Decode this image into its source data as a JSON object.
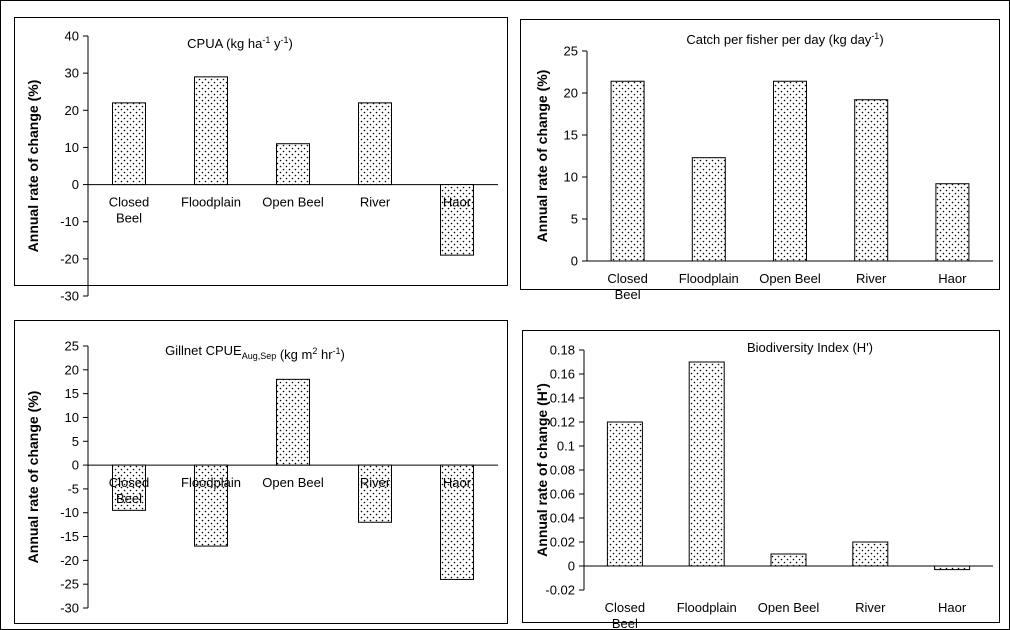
{
  "chart_data": [
    {
      "type": "bar",
      "title": "CPUA (kg ha",
      "title_sup1": "-1",
      "title_mid": " y",
      "title_sup2": "-1",
      "title_end": ")",
      "ylabel": "Annual rate of change (%)",
      "categories": [
        "Closed Beel",
        "Floodplain",
        "Open Beel",
        "River",
        "Haor"
      ],
      "category_lines": [
        [
          "Closed",
          "Beel"
        ],
        [
          "Floodplain"
        ],
        [
          "Open Beel"
        ],
        [
          "River"
        ],
        [
          "Haor"
        ]
      ],
      "values": [
        22,
        29,
        11,
        22,
        -19
      ],
      "ylim": [
        -30,
        40
      ],
      "yticks": [
        "40",
        "30",
        "20",
        "10",
        "0",
        "-10",
        "-20",
        "-30"
      ],
      "category_labels_position": "at zero line",
      "grid": false
    },
    {
      "type": "bar",
      "title": "Catch per fisher per day (kg day",
      "title_sup1": "-1",
      "title_end": ")",
      "ylabel": "Annual rate of change (%)",
      "categories": [
        "Closed Beel",
        "Floodplain",
        "Open Beel",
        "River",
        "Haor"
      ],
      "category_lines": [
        [
          "Closed",
          "Beel"
        ],
        [
          "Floodplain"
        ],
        [
          "Open Beel"
        ],
        [
          "River"
        ],
        [
          "Haor"
        ]
      ],
      "values": [
        21.4,
        12.3,
        21.4,
        19.2,
        9.2
      ],
      "ylim": [
        0,
        25
      ],
      "yticks": [
        "25",
        "20",
        "15",
        "10",
        "5",
        "0"
      ],
      "category_labels_position": "below axis",
      "grid": false
    },
    {
      "type": "bar",
      "title": "Gillnet CPUE",
      "title_sub": "Aug,Sep",
      "title_mid": " (kg m",
      "title_sup1": "2",
      "title_mid2": " hr",
      "title_sup2": "-1",
      "title_end": ")",
      "ylabel": "Annual rate of change (%)",
      "categories": [
        "Closed Beel",
        "Floodplain",
        "Open Beel",
        "River",
        "Haor"
      ],
      "category_lines": [
        [
          "Closed",
          "Beel"
        ],
        [
          "Floodplain"
        ],
        [
          "Open Beel"
        ],
        [
          "River"
        ],
        [
          "Haor"
        ]
      ],
      "values": [
        -9.5,
        -17,
        18,
        -12,
        -24
      ],
      "ylim": [
        -30,
        25
      ],
      "yticks": [
        "25",
        "20",
        "15",
        "10",
        "5",
        "0",
        "-5",
        "-10",
        "-15",
        "-20",
        "-25",
        "-30"
      ],
      "category_labels_position": "at zero line",
      "grid": false
    },
    {
      "type": "bar",
      "title": "Biodiversity Index (H')",
      "ylabel": "Annual rate of change (H')",
      "categories": [
        "Closed Beel",
        "Floodplain",
        "Open Beel",
        "River",
        "Haor"
      ],
      "category_lines": [
        [
          "Closed",
          "Beel"
        ],
        [
          "Floodplain"
        ],
        [
          "Open Beel"
        ],
        [
          "River"
        ],
        [
          "Haor"
        ]
      ],
      "values": [
        0.12,
        0.17,
        0.01,
        0.02,
        -0.003
      ],
      "ylim": [
        -0.02,
        0.18
      ],
      "yticks": [
        "0.18",
        "0.16",
        "0.14",
        "0.12",
        "0.1",
        "0.08",
        "0.06",
        "0.04",
        "0.02",
        "0",
        "-0.02"
      ],
      "category_labels_position": "below axis",
      "grid": false
    }
  ]
}
